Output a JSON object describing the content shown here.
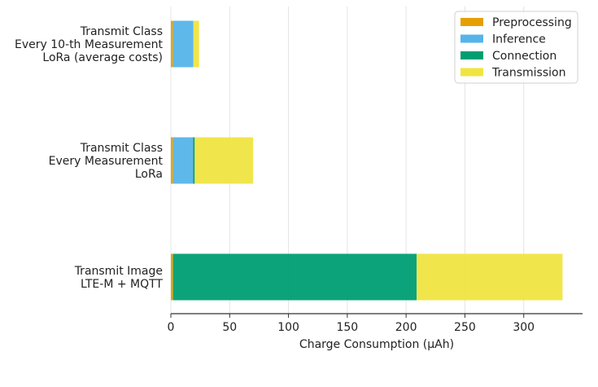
{
  "chart_data": {
    "type": "bar",
    "orientation": "horizontal",
    "stacked": true,
    "categories": [
      [
        "Transmit Class",
        "Every 10-th Measurement",
        "LoRa (average costs)"
      ],
      [
        "Transmit Class",
        "Every Measurement",
        "LoRa"
      ],
      [
        "Transmit Image",
        "LTE-M + MQTT"
      ]
    ],
    "series": [
      {
        "name": "Preprocessing",
        "color": "#E69F00",
        "values": [
          1.8,
          1.8,
          1.8
        ]
      },
      {
        "name": "Inference",
        "color": "#56B4E9",
        "values": [
          17.4,
          17.0,
          0
        ]
      },
      {
        "name": "Connection",
        "color": "#009E73",
        "values": [
          0,
          1.5,
          207.2
        ]
      },
      {
        "name": "Transmission",
        "color": "#F0E442",
        "values": [
          4.8,
          49.6,
          124.0
        ]
      }
    ],
    "xlabel": "Charge Consumption (µAh)",
    "ylabel": "",
    "xlim": [
      0,
      350
    ],
    "xticks": [
      0,
      50,
      100,
      150,
      200,
      250,
      300
    ],
    "grid": "vertical",
    "legend": "top-right"
  }
}
